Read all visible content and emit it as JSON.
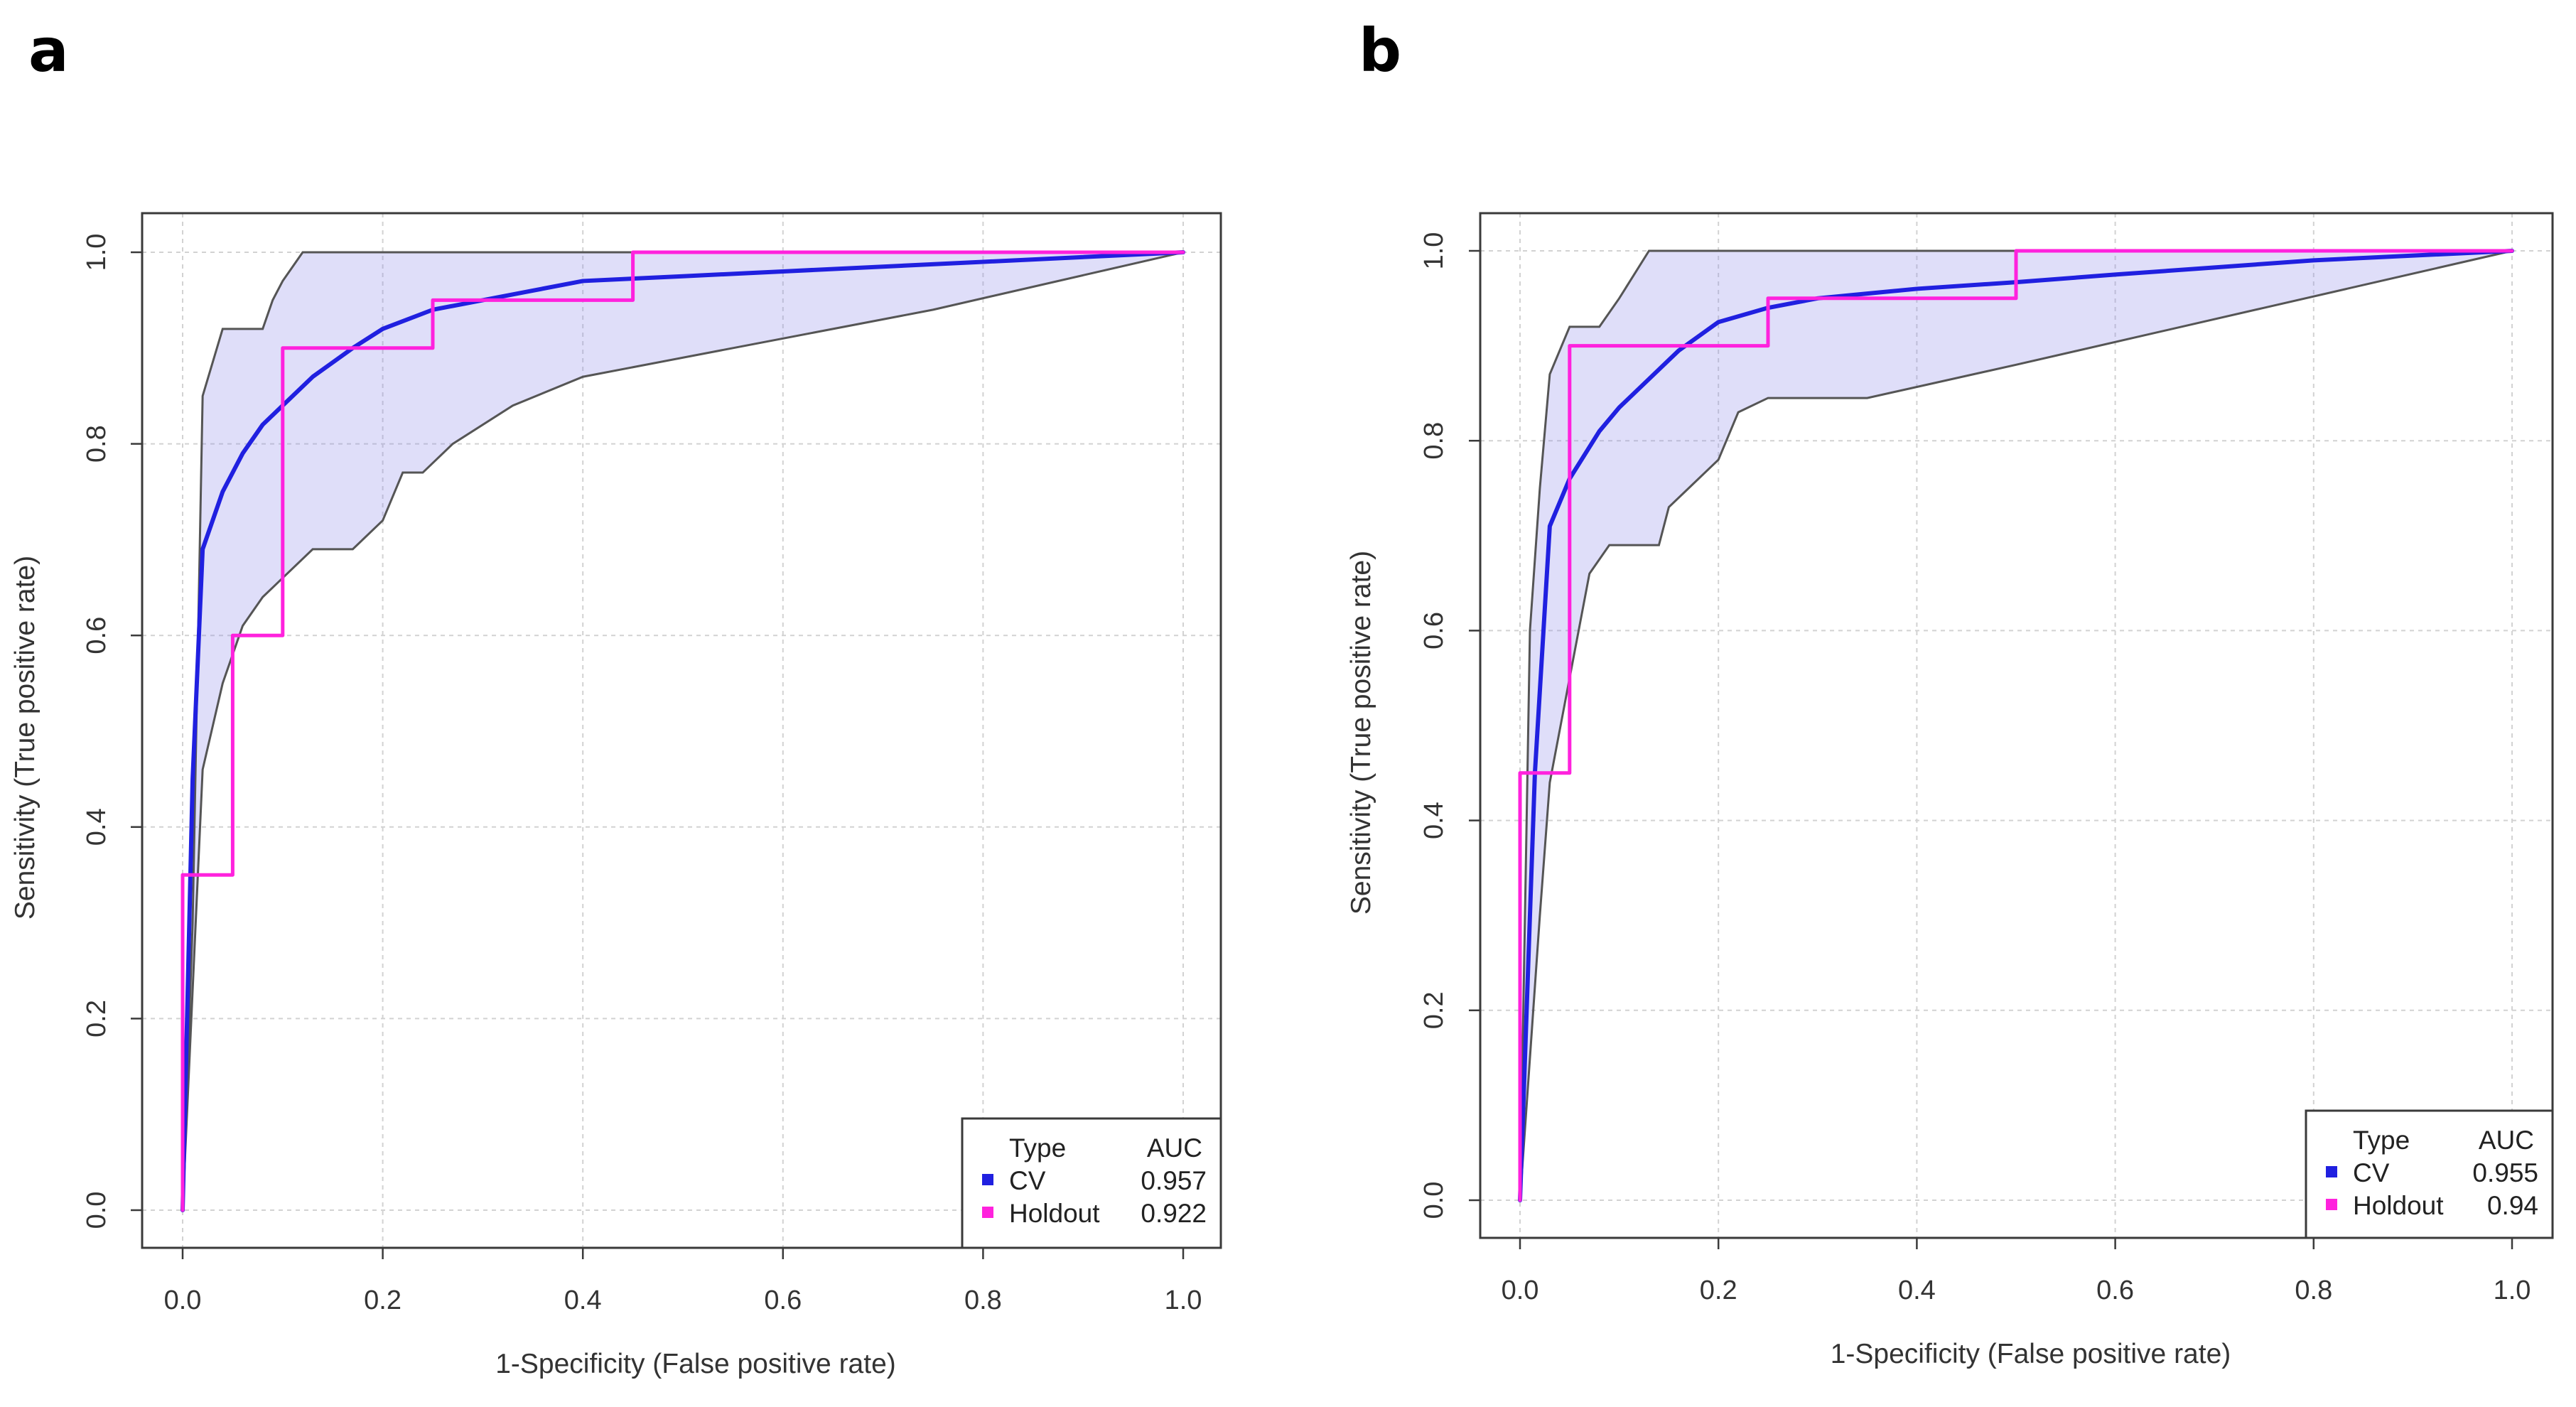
{
  "colors": {
    "cv": "#2020e0",
    "holdout": "#ff22dd",
    "band": "#8c87ea",
    "frame": "#3a3a3a"
  },
  "chart_data": [
    {
      "type": "line",
      "panel_label": "a",
      "xlabel": "1-Specificity (False positive rate)",
      "ylabel": "Sensitivity (True positive rate)",
      "xlim": [
        0,
        1
      ],
      "ylim": [
        0,
        1
      ],
      "xticks": [
        "0.0",
        "0.2",
        "0.4",
        "0.6",
        "0.8",
        "1.0"
      ],
      "yticks": [
        "0.0",
        "0.2",
        "0.4",
        "0.6",
        "0.8",
        "1.0"
      ],
      "grid": true,
      "legend": {
        "position": "bottom-right",
        "title_type": "Type",
        "title_auc": "AUC",
        "entries": [
          {
            "name": "CV",
            "auc": "0.957",
            "color": "#2020e0"
          },
          {
            "name": "Holdout",
            "auc": "0.922",
            "color": "#ff22dd"
          }
        ]
      },
      "ci_band": {
        "upper": [
          [
            0,
            0
          ],
          [
            0.01,
            0.3
          ],
          [
            0.02,
            0.85
          ],
          [
            0.04,
            0.92
          ],
          [
            0.08,
            0.92
          ],
          [
            0.09,
            0.95
          ],
          [
            0.1,
            0.97
          ],
          [
            0.12,
            1.0
          ],
          [
            1,
            1
          ]
        ],
        "lower": [
          [
            0,
            0
          ],
          [
            0.02,
            0.46
          ],
          [
            0.04,
            0.55
          ],
          [
            0.06,
            0.61
          ],
          [
            0.08,
            0.64
          ],
          [
            0.1,
            0.66
          ],
          [
            0.13,
            0.69
          ],
          [
            0.17,
            0.69
          ],
          [
            0.2,
            0.72
          ],
          [
            0.22,
            0.77
          ],
          [
            0.24,
            0.77
          ],
          [
            0.27,
            0.8
          ],
          [
            0.33,
            0.84
          ],
          [
            0.4,
            0.87
          ],
          [
            0.55,
            0.9
          ],
          [
            0.75,
            0.94
          ],
          [
            1,
            1
          ]
        ]
      },
      "series": [
        {
          "name": "CV",
          "color": "#2020e0",
          "points": [
            [
              0,
              0
            ],
            [
              0.01,
              0.45
            ],
            [
              0.02,
              0.69
            ],
            [
              0.04,
              0.75
            ],
            [
              0.06,
              0.79
            ],
            [
              0.08,
              0.82
            ],
            [
              0.1,
              0.84
            ],
            [
              0.13,
              0.87
            ],
            [
              0.17,
              0.9
            ],
            [
              0.2,
              0.92
            ],
            [
              0.25,
              0.94
            ],
            [
              0.3,
              0.95
            ],
            [
              0.35,
              0.96
            ],
            [
              0.4,
              0.97
            ],
            [
              0.5,
              0.975
            ],
            [
              0.6,
              0.98
            ],
            [
              0.8,
              0.99
            ],
            [
              1,
              1
            ]
          ]
        },
        {
          "name": "Holdout",
          "color": "#ff22dd",
          "points": [
            [
              0,
              0
            ],
            [
              0,
              0.35
            ],
            [
              0.05,
              0.35
            ],
            [
              0.05,
              0.6
            ],
            [
              0.1,
              0.6
            ],
            [
              0.1,
              0.9
            ],
            [
              0.25,
              0.9
            ],
            [
              0.25,
              0.95
            ],
            [
              0.45,
              0.95
            ],
            [
              0.45,
              1.0
            ],
            [
              1,
              1.0
            ]
          ]
        }
      ]
    },
    {
      "type": "line",
      "panel_label": "b",
      "xlabel": "1-Specificity (False positive rate)",
      "ylabel": "Sensitivity (True positive rate)",
      "xlim": [
        0,
        1
      ],
      "ylim": [
        0,
        1
      ],
      "xticks": [
        "0.0",
        "0.2",
        "0.4",
        "0.6",
        "0.8",
        "1.0"
      ],
      "yticks": [
        "0.0",
        "0.2",
        "0.4",
        "0.6",
        "0.8",
        "1.0"
      ],
      "grid": true,
      "legend": {
        "position": "bottom-right",
        "title_type": "Type",
        "title_auc": "AUC",
        "entries": [
          {
            "name": "CV",
            "auc": "0.955",
            "color": "#2020e0"
          },
          {
            "name": "Holdout",
            "auc": "0.94",
            "color": "#ff22dd"
          }
        ]
      },
      "ci_band": {
        "upper": [
          [
            0,
            0
          ],
          [
            0.01,
            0.6
          ],
          [
            0.02,
            0.75
          ],
          [
            0.03,
            0.87
          ],
          [
            0.05,
            0.92
          ],
          [
            0.08,
            0.92
          ],
          [
            0.1,
            0.95
          ],
          [
            0.13,
            1.0
          ],
          [
            1,
            1
          ]
        ],
        "lower": [
          [
            0,
            0
          ],
          [
            0.02,
            0.3
          ],
          [
            0.03,
            0.44
          ],
          [
            0.05,
            0.55
          ],
          [
            0.07,
            0.66
          ],
          [
            0.09,
            0.69
          ],
          [
            0.14,
            0.69
          ],
          [
            0.15,
            0.73
          ],
          [
            0.17,
            0.75
          ],
          [
            0.2,
            0.78
          ],
          [
            0.22,
            0.83
          ],
          [
            0.25,
            0.845
          ],
          [
            0.35,
            0.845
          ],
          [
            0.5,
            0.88
          ],
          [
            0.75,
            0.94
          ],
          [
            1,
            1
          ]
        ]
      },
      "series": [
        {
          "name": "CV",
          "color": "#2020e0",
          "points": [
            [
              0,
              0
            ],
            [
              0.015,
              0.45
            ],
            [
              0.03,
              0.71
            ],
            [
              0.05,
              0.76
            ],
            [
              0.08,
              0.81
            ],
            [
              0.1,
              0.835
            ],
            [
              0.13,
              0.865
            ],
            [
              0.16,
              0.895
            ],
            [
              0.2,
              0.925
            ],
            [
              0.25,
              0.94
            ],
            [
              0.3,
              0.95
            ],
            [
              0.35,
              0.955
            ],
            [
              0.4,
              0.96
            ],
            [
              0.5,
              0.967
            ],
            [
              0.6,
              0.975
            ],
            [
              0.8,
              0.99
            ],
            [
              1,
              1
            ]
          ]
        },
        {
          "name": "Holdout",
          "color": "#ff22dd",
          "points": [
            [
              0,
              0
            ],
            [
              0,
              0.45
            ],
            [
              0.05,
              0.45
            ],
            [
              0.05,
              0.9
            ],
            [
              0.25,
              0.9
            ],
            [
              0.25,
              0.95
            ],
            [
              0.5,
              0.95
            ],
            [
              0.5,
              1.0
            ],
            [
              1,
              1.0
            ]
          ]
        }
      ]
    }
  ]
}
